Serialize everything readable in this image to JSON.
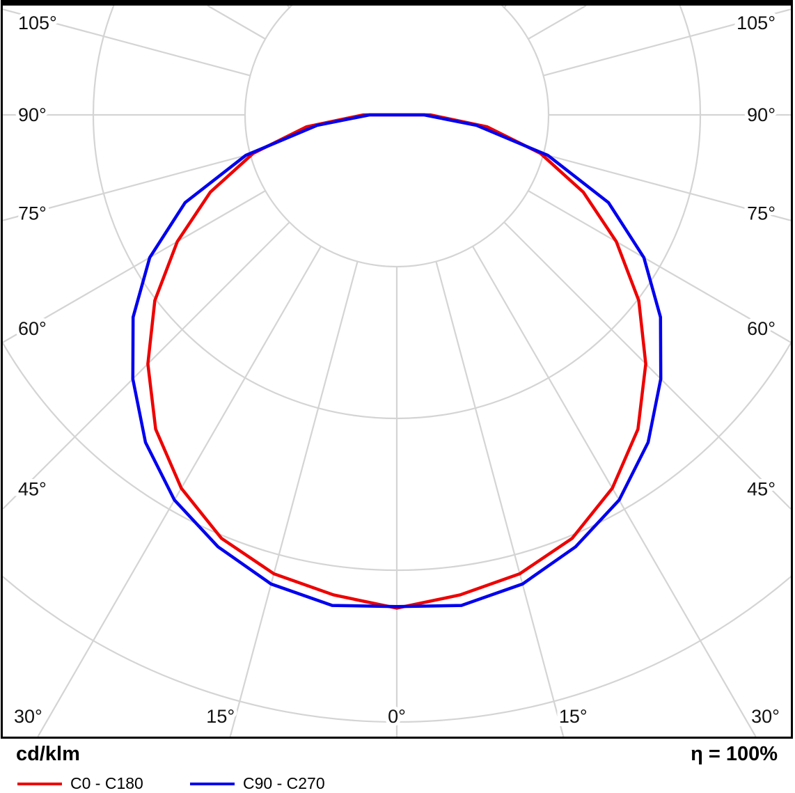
{
  "chart_data": {
    "type": "line",
    "subtype": "polar_photometric_distribution",
    "title": "",
    "unit_label": "cd/klm",
    "efficiency_label": "η = 100%",
    "orientation": "0° points down (nadir), curves mirrored left/right",
    "legend_position": "bottom-left",
    "grid": true,
    "grid_color": "#d4d4d4",
    "angle_ticks_deg": [
      0,
      15,
      30,
      45,
      60,
      75,
      90,
      105
    ],
    "ring_values_cd_klm": [
      100,
      200,
      300,
      400
    ],
    "ring_values_note": "radial rings are unlabeled in the chart; equal spacing, values estimated",
    "angles_deg": [
      0,
      7.5,
      15,
      22.5,
      30,
      37.5,
      45,
      52.5,
      60,
      67.5,
      75,
      82.5,
      90
    ],
    "series": [
      {
        "name": "C0 - C180",
        "color": "#ee0000",
        "values": [
          325,
          319,
          313,
          302,
          284,
          261,
          232,
          201,
          167,
          133,
          98,
          60,
          22
        ]
      },
      {
        "name": "C90 - C270",
        "color": "#0000ee",
        "values": [
          324,
          326,
          320,
          308,
          293,
          272,
          246,
          219,
          188,
          151,
          103,
          53,
          18
        ]
      }
    ]
  }
}
